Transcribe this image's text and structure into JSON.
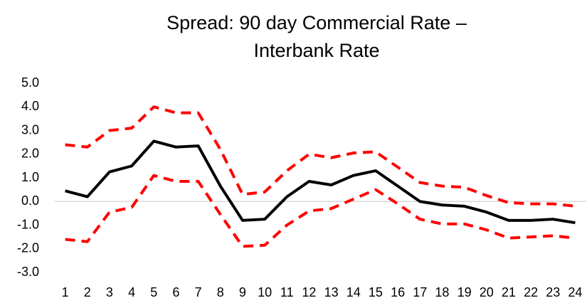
{
  "chart_data": {
    "type": "line",
    "title": [
      "Spread: 90 day Commercial Rate –",
      "Interbank Rate"
    ],
    "categories": [
      "1",
      "2",
      "3",
      "4",
      "5",
      "6",
      "7",
      "8",
      "9",
      "10",
      "11",
      "12",
      "13",
      "14",
      "15",
      "16",
      "17",
      "18",
      "19",
      "20",
      "21",
      "22",
      "23",
      "24"
    ],
    "series": [
      {
        "color": "#ff0000",
        "dashed": true,
        "values": [
          2.4,
          2.3,
          3.0,
          3.1,
          4.0,
          3.75,
          3.75,
          2.2,
          0.3,
          0.4,
          1.3,
          2.0,
          1.85,
          2.05,
          2.1,
          1.45,
          0.8,
          0.65,
          0.6,
          0.25,
          -0.05,
          -0.1,
          -0.1,
          -0.2
        ]
      },
      {
        "color": "#000000",
        "dashed": false,
        "values": [
          0.45,
          0.2,
          1.25,
          1.5,
          2.55,
          2.3,
          2.35,
          0.65,
          -0.8,
          -0.75,
          0.2,
          0.85,
          0.7,
          1.1,
          1.3,
          0.65,
          0.0,
          -0.15,
          -0.2,
          -0.45,
          -0.8,
          -0.8,
          -0.75,
          -0.9
        ]
      },
      {
        "color": "#ff0000",
        "dashed": true,
        "values": [
          -1.6,
          -1.7,
          -0.45,
          -0.25,
          1.1,
          0.85,
          0.85,
          -0.55,
          -1.9,
          -1.85,
          -1.0,
          -0.4,
          -0.3,
          0.1,
          0.5,
          -0.1,
          -0.75,
          -0.95,
          -0.95,
          -1.2,
          -1.55,
          -1.5,
          -1.45,
          -1.55
        ]
      }
    ],
    "ylim": [
      -3,
      5
    ],
    "yticks": [
      {
        "value": -3,
        "label": "-3.0"
      },
      {
        "value": -2,
        "label": "-2.0"
      },
      {
        "value": -1,
        "label": "-1.0"
      },
      {
        "value": 0,
        "label": "0.0"
      },
      {
        "value": 1,
        "label": "1.0"
      },
      {
        "value": 2,
        "label": "2.0"
      },
      {
        "value": 3,
        "label": "3.0"
      },
      {
        "value": 4,
        "label": "4.0"
      },
      {
        "value": 5,
        "label": "5.0"
      }
    ],
    "grid": false
  }
}
